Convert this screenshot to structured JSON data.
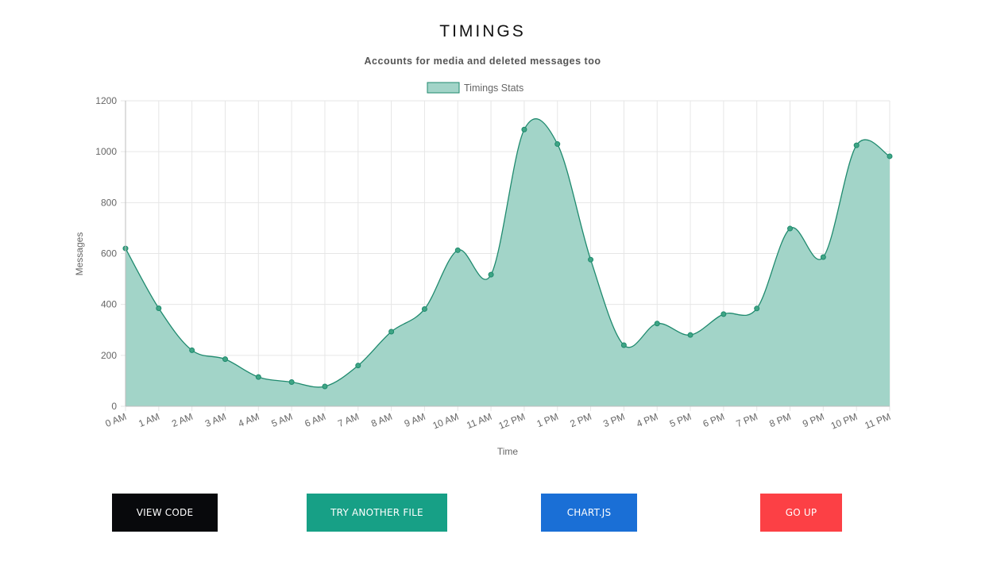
{
  "page": {
    "title": "TIMINGS",
    "subtitle": "Accounts for media and deleted messages too"
  },
  "chart_data": {
    "type": "area",
    "legend": {
      "label": "Timings Stats",
      "position": "top"
    },
    "xlabel": "Time",
    "ylabel": "Messages",
    "ylim": [
      0,
      1200
    ],
    "yticks": [
      0,
      200,
      400,
      600,
      800,
      1000,
      1200
    ],
    "grid": true,
    "categories": [
      "0 AM",
      "1 AM",
      "2 AM",
      "3 AM",
      "4 AM",
      "5 AM",
      "6 AM",
      "7 AM",
      "8 AM",
      "9 AM",
      "10 AM",
      "11 AM",
      "12 PM",
      "1 PM",
      "2 PM",
      "3 PM",
      "4 PM",
      "5 PM",
      "6 PM",
      "7 PM",
      "8 PM",
      "9 PM",
      "10 PM",
      "11 PM"
    ],
    "series": [
      {
        "name": "Timings Stats",
        "values": [
          620,
          385,
          220,
          185,
          115,
          95,
          78,
          160,
          293,
          382,
          613,
          517,
          1087,
          1030,
          576,
          240,
          325,
          280,
          362,
          384,
          698,
          586,
          1025,
          982
        ]
      }
    ],
    "colors": {
      "fill": "#a2d4c8",
      "line": "#1f8a6e",
      "point": "#3fa585",
      "grid": "#e6e6e6",
      "axis": "#666666"
    }
  },
  "buttons": {
    "view_code": "VIEW CODE",
    "try_another": "TRY ANOTHER FILE",
    "chartjs": "CHART.JS",
    "go_up": "GO UP"
  }
}
